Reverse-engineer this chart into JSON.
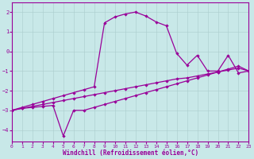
{
  "xlabel": "Windchill (Refroidissement éolien,°C)",
  "bg_color": "#c8e8e8",
  "line_color": "#990099",
  "xlim": [
    0,
    23
  ],
  "ylim": [
    -4.6,
    2.5
  ],
  "yticks": [
    -4,
    -3,
    -2,
    -1,
    0,
    1,
    2
  ],
  "xticks": [
    0,
    1,
    2,
    3,
    4,
    5,
    6,
    7,
    8,
    9,
    10,
    11,
    12,
    13,
    14,
    15,
    16,
    17,
    18,
    19,
    20,
    21,
    22,
    23
  ],
  "line_top_x": [
    0,
    1,
    2,
    3,
    4,
    5,
    6,
    7,
    8,
    9,
    10,
    11,
    12,
    13,
    14,
    15,
    16,
    17,
    18,
    19,
    20,
    21,
    22,
    23
  ],
  "line_top_y": [
    -3.0,
    -2.85,
    -2.7,
    -2.55,
    -2.4,
    -2.25,
    -2.1,
    -1.95,
    -1.8,
    1.45,
    1.75,
    1.9,
    2.0,
    1.8,
    1.5,
    1.3,
    -0.1,
    -0.7,
    -0.2,
    -1.0,
    -1.0,
    -0.2,
    -1.1,
    -1.0
  ],
  "line_mid_x": [
    0,
    1,
    2,
    3,
    4,
    5,
    6,
    7,
    8,
    9,
    10,
    11,
    12,
    13,
    14,
    15,
    16,
    17,
    18,
    19,
    20,
    21,
    22,
    23
  ],
  "line_mid_y": [
    -3.0,
    -2.9,
    -2.8,
    -2.7,
    -2.6,
    -2.5,
    -2.4,
    -2.3,
    -2.2,
    -2.1,
    -2.0,
    -1.9,
    -1.8,
    -1.7,
    -1.6,
    -1.5,
    -1.4,
    -1.35,
    -1.25,
    -1.15,
    -1.05,
    -0.95,
    -0.85,
    -1.0
  ],
  "line_bot_x": [
    0,
    1,
    2,
    3,
    4,
    5,
    6,
    7,
    8,
    9,
    10,
    11,
    12,
    13,
    14,
    15,
    16,
    17,
    18,
    19,
    20,
    21,
    22,
    23
  ],
  "line_bot_y": [
    -3.0,
    -2.9,
    -2.85,
    -2.8,
    -2.75,
    -4.3,
    -3.0,
    -3.0,
    -2.85,
    -2.7,
    -2.55,
    -2.4,
    -2.25,
    -2.1,
    -1.95,
    -1.8,
    -1.65,
    -1.5,
    -1.35,
    -1.2,
    -1.05,
    -0.9,
    -0.75,
    -1.0
  ]
}
